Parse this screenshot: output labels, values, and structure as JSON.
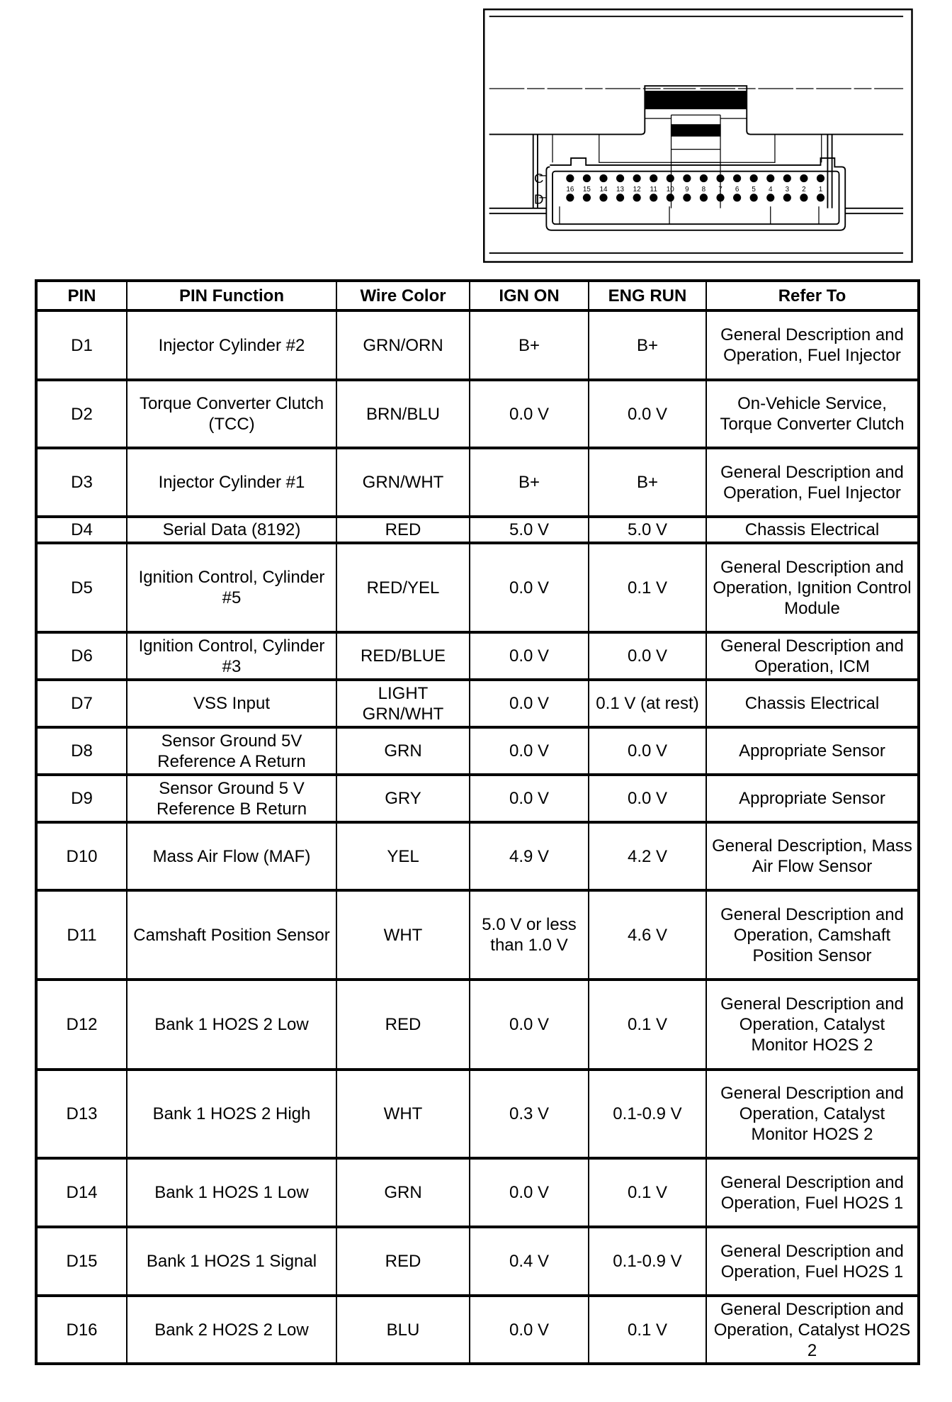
{
  "diagram": {
    "row_labels": [
      "C",
      "D"
    ],
    "pin_numbers": [
      "16",
      "15",
      "14",
      "13",
      "12",
      "11",
      "10",
      "9",
      "8",
      "7",
      "6",
      "5",
      "4",
      "3",
      "2",
      "1"
    ]
  },
  "table": {
    "headers": [
      "PIN",
      "PIN Function",
      "Wire Color",
      "IGN ON",
      "ENG RUN",
      "Refer To"
    ],
    "rows": [
      {
        "pin": "D1",
        "function": "Injector Cylinder #2",
        "wire": "GRN/ORN",
        "ign": "B+",
        "eng": "B+",
        "refer": "General Description and Operation, Fuel Injector"
      },
      {
        "pin": "D2",
        "function": "Torque Converter Clutch (TCC)",
        "wire": "BRN/BLU",
        "ign": "0.0 V",
        "eng": "0.0 V",
        "refer": "On-Vehicle Service, Torque Converter Clutch"
      },
      {
        "pin": "D3",
        "function": "Injector Cylinder #1",
        "wire": "GRN/WHT",
        "ign": "B+",
        "eng": "B+",
        "refer": "General Description and Operation, Fuel Injector"
      },
      {
        "pin": "D4",
        "function": "Serial Data (8192)",
        "wire": "RED",
        "ign": "5.0 V",
        "eng": "5.0 V",
        "refer": "Chassis Electrical"
      },
      {
        "pin": "D5",
        "function": "Ignition Control, Cylinder #5",
        "wire": "RED/YEL",
        "ign": "0.0 V",
        "eng": "0.1 V",
        "refer": "General Description and Operation, Ignition Control Module"
      },
      {
        "pin": "D6",
        "function": "Ignition Control, Cylinder #3",
        "wire": "RED/BLUE",
        "ign": "0.0 V",
        "eng": "0.0 V",
        "refer": "General Description and Operation, ICM"
      },
      {
        "pin": "D7",
        "function": "VSS Input",
        "wire": "LIGHT GRN/WHT",
        "ign": "0.0 V",
        "eng": "0.1 V (at rest)",
        "refer": "Chassis Electrical"
      },
      {
        "pin": "D8",
        "function": "Sensor Ground 5V Reference A Return",
        "wire": "GRN",
        "ign": "0.0 V",
        "eng": "0.0 V",
        "refer": "Appropriate Sensor"
      },
      {
        "pin": "D9",
        "function": "Sensor Ground 5 V Reference B Return",
        "wire": "GRY",
        "ign": "0.0 V",
        "eng": "0.0 V",
        "refer": "Appropriate Sensor"
      },
      {
        "pin": "D10",
        "function": "Mass Air Flow (MAF)",
        "wire": "YEL",
        "ign": "4.9 V",
        "eng": "4.2 V",
        "refer": "General Description, Mass Air Flow Sensor"
      },
      {
        "pin": "D11",
        "function": "Camshaft Position Sensor",
        "wire": "WHT",
        "ign": "5.0 V or less than 1.0 V",
        "eng": "4.6 V",
        "refer": "General Description and Operation, Camshaft Position Sensor"
      },
      {
        "pin": "D12",
        "function": "Bank 1 HO2S 2 Low",
        "wire": "RED",
        "ign": "0.0 V",
        "eng": "0.1 V",
        "refer": "General Description and Operation, Catalyst Monitor HO2S 2"
      },
      {
        "pin": "D13",
        "function": "Bank 1 HO2S 2 High",
        "wire": "WHT",
        "ign": "0.3 V",
        "eng": "0.1-0.9 V",
        "refer": "General Description and Operation, Catalyst Monitor HO2S 2"
      },
      {
        "pin": "D14",
        "function": "Bank 1 HO2S 1 Low",
        "wire": "GRN",
        "ign": "0.0 V",
        "eng": "0.1 V",
        "refer": "General Description and Operation, Fuel HO2S 1"
      },
      {
        "pin": "D15",
        "function": "Bank 1 HO2S 1 Signal",
        "wire": "RED",
        "ign": "0.4 V",
        "eng": "0.1-0.9 V",
        "refer": "General Description and Operation, Fuel HO2S 1"
      },
      {
        "pin": "D16",
        "function": "Bank 2 HO2S 2 Low",
        "wire": "BLU",
        "ign": "0.0 V",
        "eng": "0.1 V",
        "refer": "General Description and Operation, Catalyst HO2S 2"
      }
    ]
  }
}
